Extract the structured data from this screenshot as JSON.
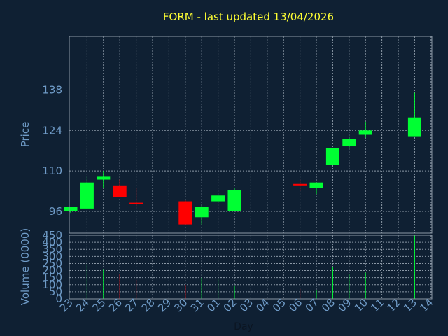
{
  "chart_data": {
    "type": "candlestick",
    "title": "FORM - last updated 13/04/2026",
    "xlabel": "Day",
    "price_panel": {
      "ylabel": "Price",
      "yticks": [
        96,
        110,
        124,
        138
      ],
      "ylim": [
        88.5,
        156.5
      ]
    },
    "volume_panel": {
      "ylabel": "Volume (0000)",
      "yticks": [
        0,
        50,
        100,
        150,
        200,
        250,
        300,
        350,
        400,
        450
      ],
      "ylim": [
        0,
        450
      ]
    },
    "x_labels": [
      "23",
      "24",
      "25",
      "26",
      "27",
      "28",
      "29",
      "30",
      "31",
      "01",
      "02",
      "03",
      "04",
      "05",
      "06",
      "07",
      "08",
      "09",
      "10",
      "11",
      "12",
      "13",
      "14"
    ],
    "candles": [
      {
        "x": "23",
        "open": 96,
        "high": 97.5,
        "low": 95.5,
        "close": 97.5
      },
      {
        "x": "24",
        "open": 97,
        "high": 108,
        "low": 97,
        "close": 106
      },
      {
        "x": "25",
        "open": 107,
        "high": 110,
        "low": 104,
        "close": 108
      },
      {
        "x": "26",
        "open": 105,
        "high": 107,
        "low": 101,
        "close": 101
      },
      {
        "x": "27",
        "open": 99,
        "high": 104,
        "low": 97.5,
        "close": 98.5
      },
      {
        "x": "30",
        "open": 99.5,
        "high": 100,
        "low": 91.5,
        "close": 91.5
      },
      {
        "x": "31",
        "open": 94,
        "high": 98,
        "low": 91.5,
        "close": 97.5
      },
      {
        "x": "01",
        "open": 99.5,
        "high": 101.5,
        "low": 99,
        "close": 101.5
      },
      {
        "x": "02",
        "open": 96,
        "high": 104,
        "low": 96,
        "close": 103.5
      },
      {
        "x": "06",
        "open": 105.5,
        "high": 107,
        "low": 103,
        "close": 105
      },
      {
        "x": "07",
        "open": 104,
        "high": 106,
        "low": 102,
        "close": 106
      },
      {
        "x": "08",
        "open": 112,
        "high": 118,
        "low": 112,
        "close": 118
      },
      {
        "x": "09",
        "open": 118.5,
        "high": 122,
        "low": 118,
        "close": 121
      },
      {
        "x": "10",
        "open": 122.5,
        "high": 127,
        "low": 121.5,
        "close": 124
      },
      {
        "x": "13",
        "open": 122,
        "high": 137,
        "low": 122,
        "close": 128.5
      }
    ],
    "volumes": [
      {
        "x": "23",
        "value": 0
      },
      {
        "x": "24",
        "value": 245
      },
      {
        "x": "25",
        "value": 205
      },
      {
        "x": "26",
        "value": 175
      },
      {
        "x": "27",
        "value": 135
      },
      {
        "x": "30",
        "value": 100
      },
      {
        "x": "31",
        "value": 150
      },
      {
        "x": "01",
        "value": 140
      },
      {
        "x": "02",
        "value": 95
      },
      {
        "x": "06",
        "value": 70
      },
      {
        "x": "07",
        "value": 60
      },
      {
        "x": "08",
        "value": 225
      },
      {
        "x": "09",
        "value": 175
      },
      {
        "x": "10",
        "value": 185
      },
      {
        "x": "13",
        "value": 450
      }
    ],
    "grid": true,
    "colors": {
      "background": "#0f2033",
      "plot_border": "#8b98a6",
      "grid": "#8b98a6",
      "up": "#00ff33",
      "down": "#ff0000",
      "tick_text": "#6f9bc7",
      "title": "#ffff33"
    }
  }
}
